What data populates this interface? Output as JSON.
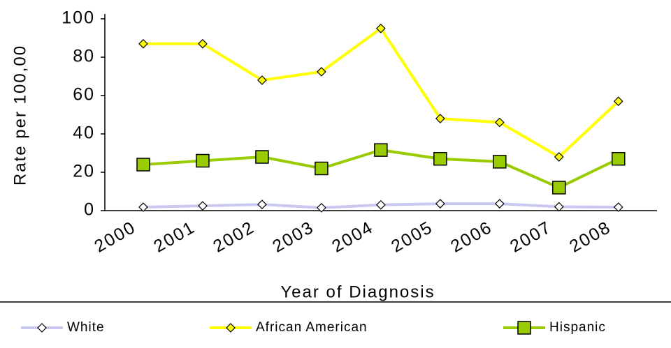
{
  "chart_data": {
    "type": "line",
    "x_label": "Year of Diagnosis",
    "y_label": "Rate per 100,00",
    "categories": [
      "2000",
      "2001",
      "2002",
      "2003",
      "2004",
      "2005",
      "2006",
      "2007",
      "2008"
    ],
    "series": [
      {
        "name": "White",
        "color": "#c8c8f0",
        "marker": "diamond",
        "marker_color": "#ffffff",
        "values": [
          1.8,
          2.5,
          3.2,
          1.5,
          3,
          3.6,
          3.6,
          2,
          1.8
        ]
      },
      {
        "name": "African American",
        "color": "#ffff00",
        "marker": "diamond",
        "marker_color": "#ffff00",
        "values": [
          87,
          87,
          68,
          72.4,
          95,
          48,
          46,
          28,
          57
        ]
      },
      {
        "name": "Hispanic",
        "color": "#99cc00",
        "marker": "square",
        "marker_color": "#99cc00",
        "values": [
          24,
          26,
          28,
          22,
          31.6,
          27,
          25.5,
          12,
          27
        ]
      }
    ],
    "ylim": [
      0,
      100
    ],
    "yticks": [
      0,
      20,
      40,
      60,
      80,
      100
    ],
    "grid": false
  }
}
